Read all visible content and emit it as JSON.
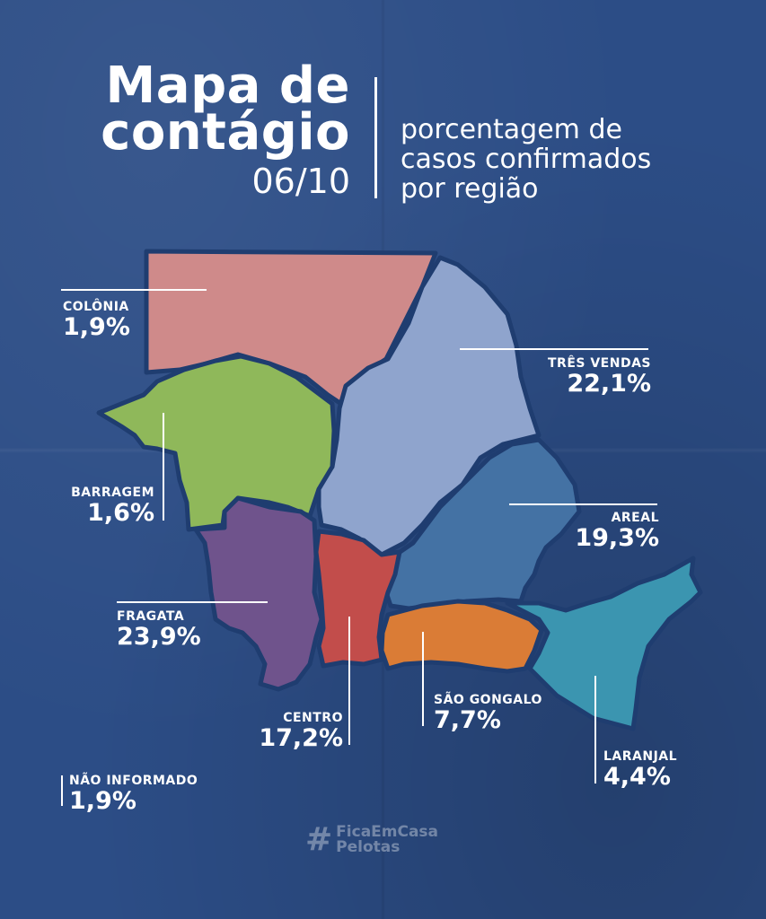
{
  "title": {
    "line1": "Mapa de",
    "line2": "contágio",
    "date": "06/10"
  },
  "subtitle": {
    "line1": "porcentagem de",
    "line2": "casos confirmados",
    "line3": "por região"
  },
  "colors": {
    "background": "#2c4d86",
    "colonia": "#cf8a8a",
    "tres_vendas": "#8fa4cd",
    "barragem": "#8fb85a",
    "areal": "#4472a4",
    "fragata": "#6f538c",
    "centro": "#c24d4b",
    "sao_goncalo": "#da7c36",
    "laranjal": "#3b95b0"
  },
  "regions": {
    "colonia": {
      "name": "COLÔNIA",
      "value": "1,9%"
    },
    "tres_vendas": {
      "name": "TRÊS VENDAS",
      "value": "22,1%"
    },
    "barragem": {
      "name": "BARRAGEM",
      "value": "1,6%"
    },
    "areal": {
      "name": "AREAL",
      "value": "19,3%"
    },
    "fragata": {
      "name": "FRAGATA",
      "value": "23,9%"
    },
    "centro": {
      "name": "CENTRO",
      "value": "17,2%"
    },
    "sao_goncalo": {
      "name": "SÃO GONGALO",
      "value": "7,7%"
    },
    "laranjal": {
      "name": "LARANJAL",
      "value": "4,4%"
    },
    "nao_informado": {
      "name": "NÃO INFORMADO",
      "value": "1,9%"
    }
  },
  "hashtag": {
    "line1": "FicaEmCasa",
    "line2": "Pelotas",
    "icon": "hash-icon"
  }
}
